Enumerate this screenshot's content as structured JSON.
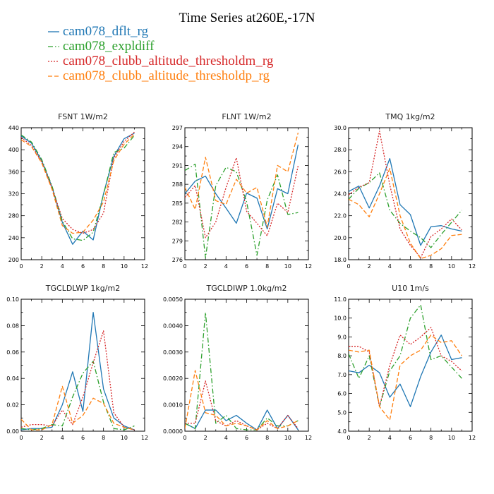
{
  "figure": {
    "title": "Time Series at260E,-17N"
  },
  "legend": [
    {
      "name": "cam078_dflt_rg",
      "color": "#1f77b4",
      "dash": "solid"
    },
    {
      "name": "cam078_expldiff",
      "color": "#2ca02c",
      "dash": "dashdot"
    },
    {
      "name": "cam078_clubb_altitude_thresholdm_rg",
      "color": "#d62728",
      "dash": "dot"
    },
    {
      "name": "cam078_clubb_altitude_thresholdp_rg",
      "color": "#ff7f0e",
      "dash": "dash"
    }
  ],
  "chart_data": [
    {
      "type": "line",
      "title": "FSNT   1W/m2",
      "x": [
        0,
        1,
        2,
        3,
        4,
        5,
        6,
        7,
        8,
        9,
        10,
        11
      ],
      "xlim": [
        0,
        12
      ],
      "xticks": [
        "0",
        "2",
        "4",
        "6",
        "8",
        "10",
        "12"
      ],
      "ylim": [
        200,
        440
      ],
      "yticks": [
        "200",
        "240",
        "280",
        "320",
        "360",
        "400",
        "440"
      ],
      "series": [
        {
          "name": "cam078_dflt_rg",
          "values": [
            425,
            412,
            380,
            332,
            268,
            228,
            252,
            236,
            320,
            388,
            420,
            430
          ]
        },
        {
          "name": "cam078_expldiff",
          "values": [
            427,
            414,
            382,
            334,
            270,
            238,
            235,
            250,
            318,
            395,
            403,
            426
          ]
        },
        {
          "name": "cam078_clubb_altitude_thresholdm_rg",
          "values": [
            422,
            408,
            378,
            330,
            275,
            255,
            248,
            255,
            285,
            385,
            415,
            432
          ]
        },
        {
          "name": "cam078_clubb_altitude_thresholdp_rg",
          "values": [
            418,
            406,
            376,
            328,
            262,
            248,
            250,
            272,
            305,
            380,
            410,
            428
          ]
        }
      ]
    },
    {
      "type": "line",
      "title": "FLNT   1W/m2",
      "x": [
        0,
        1,
        2,
        3,
        4,
        5,
        6,
        7,
        8,
        9,
        10,
        11
      ],
      "xlim": [
        0,
        12
      ],
      "xticks": [
        "0",
        "2",
        "4",
        "6",
        "8",
        "10",
        "12"
      ],
      "ylim": [
        276,
        297
      ],
      "yticks": [
        "276",
        "279",
        "282",
        "285",
        "288",
        "291",
        "294",
        "297"
      ],
      "series": [
        {
          "name": "cam078_dflt_rg",
          "values": [
            286.5,
            288.5,
            289.3,
            286.5,
            284.2,
            281.8,
            286.6,
            285.8,
            280.9,
            287.3,
            286.5,
            294.3
          ]
        },
        {
          "name": "cam078_expldiff",
          "values": [
            290.2,
            291.2,
            276.3,
            287.8,
            290.7,
            290.0,
            285.2,
            276.7,
            285.5,
            289.5,
            283.2,
            283.5
          ]
        },
        {
          "name": "cam078_clubb_altitude_thresholdm_rg",
          "values": [
            285.9,
            287.8,
            279.5,
            282.0,
            287.5,
            292.2,
            283.7,
            281.8,
            279.8,
            285.0,
            283.5,
            290.9
          ]
        },
        {
          "name": "cam078_clubb_altitude_thresholdp_rg",
          "values": [
            287.5,
            284.0,
            292.3,
            285.4,
            284.8,
            288.8,
            286.6,
            287.5,
            281.2,
            291.0,
            290.0,
            296.2
          ]
        }
      ]
    },
    {
      "type": "line",
      "title": "TMQ   1kg/m2",
      "x": [
        0,
        1,
        2,
        3,
        4,
        5,
        6,
        7,
        8,
        9,
        10,
        11
      ],
      "xlim": [
        0,
        12
      ],
      "xticks": [
        "0",
        "2",
        "4",
        "6",
        "8",
        "10",
        "12"
      ],
      "ylim": [
        18.0,
        30.0
      ],
      "yticks": [
        "18.0",
        "20.0",
        "22.0",
        "24.0",
        "26.0",
        "28.0",
        "30.0"
      ],
      "series": [
        {
          "name": "cam078_dflt_rg",
          "values": [
            24.2,
            24.7,
            22.7,
            24.7,
            27.2,
            23.0,
            22.1,
            19.3,
            21.0,
            21.1,
            20.8,
            20.6
          ]
        },
        {
          "name": "cam078_expldiff",
          "values": [
            23.5,
            24.5,
            25.0,
            25.9,
            22.5,
            21.3,
            20.6,
            20.0,
            19.1,
            20.3,
            21.4,
            22.5
          ]
        },
        {
          "name": "cam078_clubb_altitude_thresholdm_rg",
          "values": [
            23.9,
            24.6,
            25.0,
            29.7,
            24.8,
            20.8,
            19.3,
            18.2,
            20.1,
            20.8,
            21.7,
            20.7
          ]
        },
        {
          "name": "cam078_clubb_altitude_thresholdp_rg",
          "values": [
            23.5,
            23.0,
            21.9,
            24.0,
            26.3,
            22.0,
            19.5,
            18.1,
            18.4,
            19.0,
            20.2,
            20.3
          ]
        }
      ]
    },
    {
      "type": "line",
      "title": "TGCLDLWP   1kg/m2",
      "x": [
        0,
        1,
        2,
        3,
        4,
        5,
        6,
        7,
        8,
        9,
        10,
        11
      ],
      "xlim": [
        0,
        12
      ],
      "xticks": [
        "0",
        "2",
        "4",
        "6",
        "8",
        "10",
        "12"
      ],
      "ylim": [
        0.0,
        0.1
      ],
      "yticks": [
        "0.00",
        "0.02",
        "0.04",
        "0.06",
        "0.08",
        "0.10"
      ],
      "series": [
        {
          "name": "cam078_dflt_rg",
          "values": [
            0.001,
            0.002,
            0.002,
            0.003,
            0.02,
            0.045,
            0.015,
            0.09,
            0.032,
            0.01,
            0.004,
            0.001
          ]
        },
        {
          "name": "cam078_expldiff",
          "values": [
            0.002,
            0.001,
            0.002,
            0.005,
            0.004,
            0.026,
            0.044,
            0.053,
            0.022,
            0.002,
            0.001,
            0.004
          ]
        },
        {
          "name": "cam078_clubb_altitude_thresholdm_rg",
          "values": [
            0.003,
            0.005,
            0.005,
            0.004,
            0.016,
            0.005,
            0.026,
            0.052,
            0.076,
            0.014,
            0.003,
            0.001
          ]
        },
        {
          "name": "cam078_clubb_altitude_thresholdp_rg",
          "values": [
            0.009,
            0.001,
            0.001,
            0.005,
            0.034,
            0.006,
            0.012,
            0.025,
            0.021,
            0.006,
            0.003,
            0.001
          ]
        }
      ]
    },
    {
      "type": "line",
      "title": "TGCLDIWP   1.0kg/m2",
      "x": [
        0,
        1,
        2,
        3,
        4,
        5,
        6,
        7,
        8,
        9,
        10,
        11
      ],
      "xlim": [
        0,
        12
      ],
      "xticks": [
        "0",
        "2",
        "4",
        "6",
        "8",
        "10",
        "12"
      ],
      "ylim": [
        0.0,
        0.005
      ],
      "yticks": [
        "0.0000",
        "0.0010",
        "0.0020",
        "0.0030",
        "0.0040",
        "0.0050"
      ],
      "series": [
        {
          "name": "cam078_dflt_rg",
          "values": [
            0.0003,
            0.0001,
            0.0008,
            0.0008,
            0.0004,
            0.0006,
            0.0003,
            5e-05,
            0.0008,
            0.0001,
            0.0006,
            5e-05
          ]
        },
        {
          "name": "cam078_expldiff",
          "values": [
            0.0003,
            0.0001,
            0.0045,
            0.0003,
            0.0006,
            0.0001,
            5e-05,
            5e-05,
            0.0005,
            0.0002,
            0.0002,
            0.0004
          ]
        },
        {
          "name": "cam078_clubb_altitude_thresholdm_rg",
          "values": [
            0.0003,
            0.0003,
            0.0019,
            0.0004,
            0.0002,
            0.0004,
            0.0002,
            5e-05,
            0.0003,
            0.0001,
            0.0006,
            0.0001
          ]
        },
        {
          "name": "cam078_clubb_altitude_thresholdp_rg",
          "values": [
            0.0001,
            0.0023,
            0.0007,
            0.0006,
            0.0002,
            0.0003,
            0.0002,
            5e-05,
            0.0004,
            0.0001,
            0.0002,
            0.0004
          ]
        }
      ]
    },
    {
      "type": "line",
      "title": "U10   1m/s",
      "x": [
        0,
        1,
        2,
        3,
        4,
        5,
        6,
        7,
        8,
        9,
        10,
        11
      ],
      "xlim": [
        0,
        12
      ],
      "xticks": [
        "0",
        "2",
        "4",
        "6",
        "8",
        "10",
        "12"
      ],
      "ylim": [
        4.0,
        11.0
      ],
      "yticks": [
        "4.0",
        "5.0",
        "6.0",
        "7.0",
        "8.0",
        "9.0",
        "10.0",
        "11.0"
      ],
      "series": [
        {
          "name": "cam078_dflt_rg",
          "values": [
            7.2,
            7.1,
            7.5,
            7.1,
            5.8,
            6.5,
            5.3,
            6.9,
            8.2,
            9.1,
            7.8,
            7.9
          ]
        },
        {
          "name": "cam078_expldiff",
          "values": [
            8.1,
            6.8,
            8.0,
            5.3,
            7.2,
            8.0,
            10.0,
            10.7,
            7.8,
            8.0,
            7.4,
            6.8
          ]
        },
        {
          "name": "cam078_clubb_altitude_thresholdm_rg",
          "values": [
            8.5,
            8.5,
            8.2,
            5.3,
            7.5,
            9.1,
            8.6,
            9.0,
            9.5,
            8.0,
            7.7,
            7.2
          ]
        },
        {
          "name": "cam078_clubb_altitude_thresholdp_rg",
          "values": [
            8.3,
            8.2,
            8.3,
            5.3,
            4.6,
            7.5,
            8.0,
            8.3,
            9.1,
            8.7,
            8.8,
            8.0
          ]
        }
      ]
    }
  ]
}
